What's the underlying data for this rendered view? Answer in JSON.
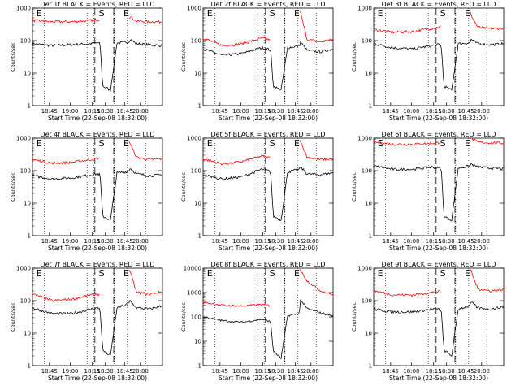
{
  "colors": {
    "background": "#ffffff",
    "axes": "#000000",
    "events_series": "#000000",
    "lld_series": "#ff0000"
  },
  "chart_data": [
    {
      "type": "line",
      "title": "Det 1f BLACK = Events, RED = LLD",
      "xlabel": "Start Time (22-Sep-08 18:32:00)",
      "ylabel": "Counts/sec",
      "x_ticks": [
        "18:45",
        "19:00",
        "18:15",
        "18:30",
        "18:45",
        "20:00"
      ],
      "y_scale": "log",
      "ylim": [
        1,
        1000
      ],
      "y_ticks": [
        "1",
        "10",
        "100",
        "1000"
      ],
      "markers": [
        "E",
        "S",
        "E"
      ],
      "series": [
        {
          "color": "#000000",
          "x": [
            0,
            0.15,
            0.3,
            0.45,
            0.5,
            0.52,
            0.54,
            0.6,
            0.65,
            0.74,
            0.75,
            0.8,
            0.9,
            1.0
          ],
          "y": [
            80,
            70,
            75,
            80,
            85,
            80,
            4,
            3,
            85,
            90,
            110,
            80,
            75,
            70
          ]
        },
        {
          "color": "#ff0000",
          "x": [
            0,
            0.15,
            0.3,
            0.45,
            0.5,
            0.52,
            0.54,
            0.6,
            0.65,
            0.74,
            0.75,
            0.8,
            0.9,
            1.0
          ],
          "y": [
            420,
            380,
            380,
            420,
            440,
            430,
            null,
            null,
            null,
            500,
            550,
            400,
            380,
            380
          ]
        }
      ]
    },
    {
      "type": "line",
      "title": "Det 2f BLACK = Events, RED = LLD",
      "xlabel": "Start Time (22-Sep-08 18:32:00)",
      "ylabel": "Counts/sec",
      "x_ticks": [
        "18:45",
        "18:00",
        "18:15",
        "18:30",
        "18:45",
        "20:00"
      ],
      "y_scale": "log",
      "ylim": [
        1,
        1000
      ],
      "y_ticks": [
        "1",
        "10",
        "100",
        "1000"
      ],
      "markers": [
        "E",
        "S",
        "E"
      ],
      "series": [
        {
          "color": "#000000",
          "x": [
            0,
            0.15,
            0.3,
            0.45,
            0.5,
            0.52,
            0.54,
            0.6,
            0.65,
            0.74,
            0.75,
            0.8,
            0.9,
            1.0
          ],
          "y": [
            55,
            35,
            40,
            60,
            55,
            50,
            4,
            3,
            60,
            70,
            90,
            50,
            45,
            55
          ]
        },
        {
          "color": "#ff0000",
          "x": [
            0,
            0.15,
            0.3,
            0.45,
            0.5,
            0.52,
            0.54,
            0.6,
            0.65,
            0.74,
            0.75,
            0.8,
            0.9,
            1.0
          ],
          "y": [
            120,
            70,
            80,
            120,
            110,
            100,
            null,
            null,
            null,
            1000,
            700,
            110,
            90,
            110
          ]
        }
      ]
    },
    {
      "type": "line",
      "title": "Det 3f BLACK = Events, RED = LLD",
      "xlabel": "Start Time (22-Sep-08 18:32:00)",
      "ylabel": "Counts/sec",
      "x_ticks": [
        "18:45",
        "18:00",
        "18:15",
        "18:30",
        "18:45",
        "20:00"
      ],
      "y_scale": "log",
      "ylim": [
        1,
        1000
      ],
      "y_ticks": [
        "1",
        "10",
        "100",
        "1000"
      ],
      "markers": [
        "E",
        "S",
        "E"
      ],
      "series": [
        {
          "color": "#000000",
          "x": [
            0,
            0.15,
            0.3,
            0.45,
            0.5,
            0.52,
            0.54,
            0.6,
            0.65,
            0.74,
            0.75,
            0.8,
            0.9,
            1.0
          ],
          "y": [
            80,
            60,
            55,
            70,
            75,
            70,
            4,
            3,
            80,
            85,
            110,
            80,
            75,
            80
          ]
        },
        {
          "color": "#ff0000",
          "x": [
            0,
            0.15,
            0.3,
            0.45,
            0.5,
            0.52,
            0.54,
            0.6,
            0.65,
            0.74,
            0.75,
            0.8,
            0.9,
            1.0
          ],
          "y": [
            220,
            180,
            190,
            240,
            260,
            280,
            null,
            null,
            null,
            800,
            600,
            260,
            230,
            240
          ]
        }
      ]
    },
    {
      "type": "line",
      "title": "Det 4f BLACK = Events, RED = LLD",
      "xlabel": "Start Time (22-Sep-08 18:32:00)",
      "ylabel": "Counts/sec",
      "x_ticks": [
        "18:45",
        "19:00",
        "18:15",
        "18:30",
        "18:45",
        "20:00"
      ],
      "y_scale": "log",
      "ylim": [
        1,
        1000
      ],
      "y_ticks": [
        "1",
        "10",
        "100",
        "1000"
      ],
      "markers": [
        "E",
        "S",
        "E"
      ],
      "series": [
        {
          "color": "#000000",
          "x": [
            0,
            0.15,
            0.3,
            0.45,
            0.5,
            0.52,
            0.54,
            0.6,
            0.65,
            0.74,
            0.75,
            0.8,
            0.9,
            1.0
          ],
          "y": [
            70,
            55,
            60,
            75,
            80,
            75,
            4,
            3,
            85,
            95,
            120,
            80,
            70,
            75
          ]
        },
        {
          "color": "#ff0000",
          "x": [
            0,
            0.15,
            0.3,
            0.45,
            0.5,
            0.52,
            0.54,
            0.6,
            0.65,
            0.74,
            0.75,
            0.8,
            0.9,
            1.0
          ],
          "y": [
            220,
            170,
            180,
            220,
            240,
            230,
            null,
            null,
            null,
            900,
            700,
            260,
            220,
            230
          ]
        }
      ]
    },
    {
      "type": "line",
      "title": "Det 5f BLACK = Events, RED = LLD",
      "xlabel": "Start Time (22-Sep-08 18:32:00)",
      "ylabel": "Counts/sec",
      "x_ticks": [
        "18:45",
        "18:00",
        "18:15",
        "18:30",
        "18:45",
        "20:00"
      ],
      "y_scale": "log",
      "ylim": [
        1,
        1000
      ],
      "y_ticks": [
        "1",
        "10",
        "100",
        "1000"
      ],
      "markers": [
        "E",
        "S",
        "E"
      ],
      "series": [
        {
          "color": "#000000",
          "x": [
            0,
            0.15,
            0.3,
            0.45,
            0.5,
            0.52,
            0.54,
            0.6,
            0.65,
            0.74,
            0.75,
            0.8,
            0.9,
            1.0
          ],
          "y": [
            75,
            55,
            65,
            110,
            100,
            90,
            4,
            3,
            90,
            110,
            130,
            80,
            75,
            85
          ]
        },
        {
          "color": "#ff0000",
          "x": [
            0,
            0.15,
            0.3,
            0.45,
            0.5,
            0.52,
            0.54,
            0.6,
            0.65,
            0.74,
            0.75,
            0.8,
            0.9,
            1.0
          ],
          "y": [
            230,
            160,
            190,
            280,
            260,
            240,
            null,
            null,
            null,
            1000,
            800,
            260,
            220,
            230
          ]
        }
      ]
    },
    {
      "type": "line",
      "title": "Det 6f BLACK = Events, RED = LLD",
      "xlabel": "Start Time (22-Sep-08 18:32:00)",
      "ylabel": "Counts/sec",
      "x_ticks": [
        "18:45",
        "18:00",
        "18:15",
        "18:30",
        "18:45",
        "20:00"
      ],
      "y_scale": "log",
      "ylim": [
        1,
        1000
      ],
      "y_ticks": [
        "1",
        "10",
        "100",
        "1000"
      ],
      "markers": [
        "E",
        "S",
        "E"
      ],
      "series": [
        {
          "color": "#000000",
          "x": [
            0,
            0.15,
            0.3,
            0.45,
            0.5,
            0.52,
            0.54,
            0.6,
            0.65,
            0.74,
            0.75,
            0.8,
            0.9,
            1.0
          ],
          "y": [
            140,
            110,
            110,
            130,
            120,
            115,
            4,
            3,
            120,
            140,
            160,
            130,
            120,
            115
          ]
        },
        {
          "color": "#ff0000",
          "x": [
            0,
            0.15,
            0.3,
            0.45,
            0.5,
            0.52,
            0.54,
            0.6,
            0.65,
            0.74,
            0.75,
            0.8,
            0.9,
            1.0
          ],
          "y": [
            750,
            650,
            650,
            700,
            720,
            750,
            null,
            null,
            null,
            1000,
            1000,
            750,
            720,
            700
          ]
        }
      ]
    },
    {
      "type": "line",
      "title": "Det 7f BLACK = Events, RED = LLD",
      "xlabel": "Start Time (22-Sep-08 18:32:00)",
      "ylabel": "Counts/sec",
      "x_ticks": [
        "18:45",
        "19:00",
        "18:15",
        "18:30",
        "18:45",
        "20:00"
      ],
      "y_scale": "log",
      "ylim": [
        1,
        1000
      ],
      "y_ticks": [
        "1",
        "10",
        "100",
        "1000"
      ],
      "markers": [
        "E",
        "S",
        "E"
      ],
      "series": [
        {
          "color": "#000000",
          "x": [
            0,
            0.15,
            0.3,
            0.45,
            0.5,
            0.52,
            0.54,
            0.6,
            0.65,
            0.74,
            0.75,
            0.8,
            0.9,
            1.0
          ],
          "y": [
            60,
            40,
            40,
            55,
            60,
            55,
            3,
            2,
            60,
            80,
            100,
            60,
            55,
            70
          ]
        },
        {
          "color": "#ff0000",
          "x": [
            0,
            0.15,
            0.3,
            0.45,
            0.5,
            0.52,
            0.54,
            0.6,
            0.65,
            0.74,
            0.75,
            0.8,
            0.9,
            1.0
          ],
          "y": [
            160,
            100,
            110,
            150,
            160,
            150,
            null,
            null,
            null,
            1000,
            800,
            180,
            160,
            190
          ]
        }
      ]
    },
    {
      "type": "line",
      "title": "Det 8f BLACK = Events, RED = LLD",
      "xlabel": "Start Time (22-Sep-08 18:32:00)",
      "ylabel": "Counts/sec",
      "x_ticks": [
        "18:45",
        "18:00",
        "18:15",
        "18:30",
        "18:45",
        "20:00"
      ],
      "y_scale": "log",
      "ylim": [
        1,
        10000
      ],
      "y_ticks": [
        "1",
        "10",
        "100",
        "1000",
        "10000"
      ],
      "markers": [
        "E",
        "S",
        "E"
      ],
      "series": [
        {
          "color": "#000000",
          "x": [
            0,
            0.15,
            0.3,
            0.45,
            0.5,
            0.52,
            0.54,
            0.6,
            0.65,
            0.74,
            0.75,
            0.8,
            0.9,
            1.0
          ],
          "y": [
            100,
            70,
            60,
            80,
            70,
            60,
            4,
            2,
            110,
            140,
            500,
            220,
            150,
            110
          ]
        },
        {
          "color": "#ff0000",
          "x": [
            0,
            0.15,
            0.3,
            0.45,
            0.5,
            0.52,
            0.54,
            0.6,
            0.65,
            0.74,
            0.75,
            0.8,
            0.9,
            1.0
          ],
          "y": [
            400,
            300,
            280,
            320,
            300,
            280,
            null,
            null,
            null,
            10000,
            8000,
            3000,
            1200,
            800
          ]
        }
      ]
    },
    {
      "type": "line",
      "title": "Det 9f BLACK = Events, RED = LLD",
      "xlabel": "Start Time (22-Sep-08 18:32:00)",
      "ylabel": "Counts/sec",
      "x_ticks": [
        "18:45",
        "18:00",
        "18:15",
        "18:30",
        "18:45",
        "20:00"
      ],
      "y_scale": "log",
      "ylim": [
        1,
        1000
      ],
      "y_ticks": [
        "1",
        "10",
        "100",
        "1000"
      ],
      "markers": [
        "E",
        "S",
        "E"
      ],
      "series": [
        {
          "color": "#000000",
          "x": [
            0,
            0.15,
            0.3,
            0.45,
            0.5,
            0.52,
            0.54,
            0.6,
            0.65,
            0.74,
            0.75,
            0.8,
            0.9,
            1.0
          ],
          "y": [
            55,
            45,
            45,
            55,
            55,
            50,
            3,
            2,
            55,
            70,
            90,
            60,
            55,
            65
          ]
        },
        {
          "color": "#ff0000",
          "x": [
            0,
            0.15,
            0.3,
            0.45,
            0.5,
            0.52,
            0.54,
            0.6,
            0.65,
            0.74,
            0.75,
            0.8,
            0.9,
            1.0
          ],
          "y": [
            200,
            150,
            150,
            180,
            190,
            180,
            null,
            null,
            null,
            1000,
            800,
            230,
            200,
            220
          ]
        }
      ]
    }
  ]
}
